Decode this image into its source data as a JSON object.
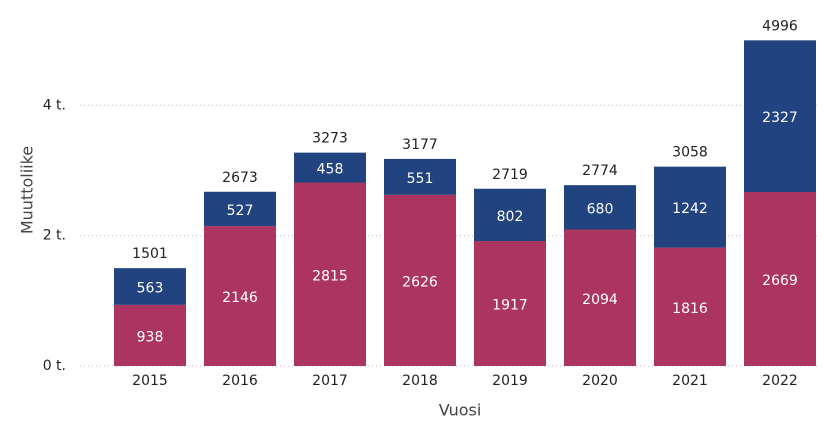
{
  "chart_data": {
    "type": "stacked_bar",
    "categories": [
      "2015",
      "2016",
      "2017",
      "2018",
      "2019",
      "2020",
      "2021",
      "2022"
    ],
    "series": [
      {
        "color": "#ab3560",
        "values": [
          938,
          2146,
          2815,
          2626,
          1917,
          2094,
          1816,
          2669
        ]
      },
      {
        "color": "#21437f",
        "values": [
          563,
          527,
          458,
          551,
          802,
          680,
          1242,
          2327
        ]
      }
    ],
    "totals": [
      1501,
      2673,
      3273,
      3177,
      2719,
      2774,
      3058,
      4996
    ],
    "x_label": "Vuosi",
    "y_label": "Muuttoliike",
    "ylim": [
      0,
      5400
    ],
    "yticks": [
      {
        "value": 0,
        "label": "0 t."
      },
      {
        "value": 2000,
        "label": "2 t."
      },
      {
        "value": 4000,
        "label": "4 t."
      }
    ],
    "grid": true
  }
}
